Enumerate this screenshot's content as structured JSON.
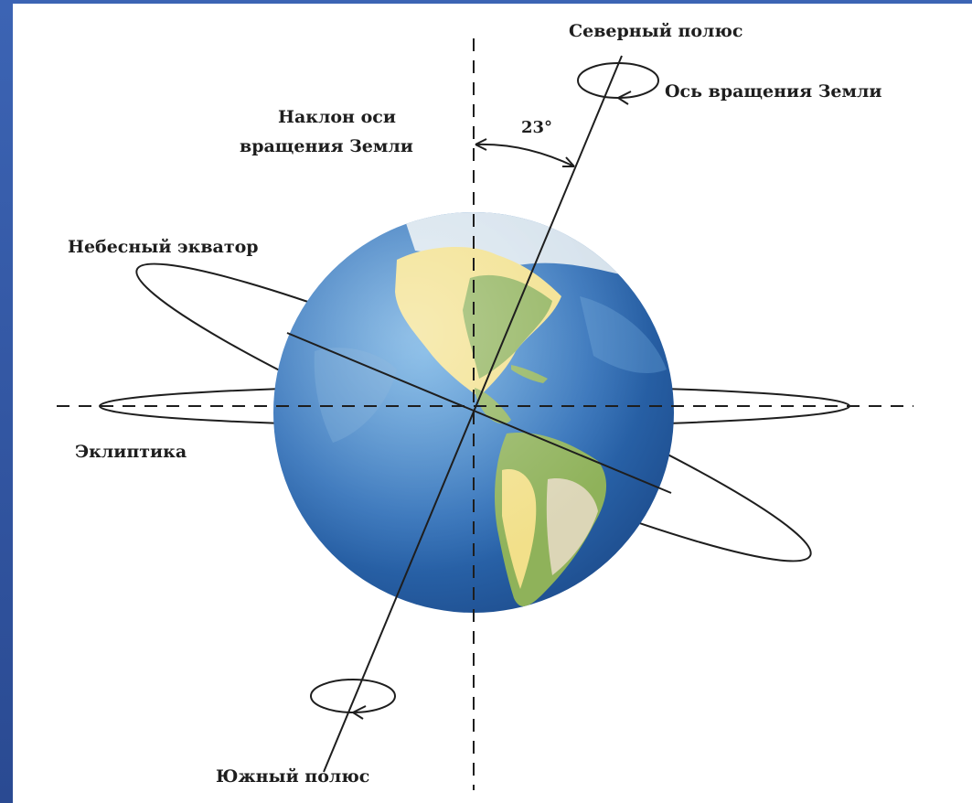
{
  "labels": {
    "north_pole": "Северный полюс",
    "rotation_axis": "Ось вращения Земли",
    "tilt_line1": "Наклон оси",
    "tilt_line2": "вращения Земли",
    "angle": "23°",
    "celestial_equator": "Небесный экватор",
    "ecliptic": "Эклиптика",
    "south_pole": "Южный полюс"
  },
  "colors": {
    "background": "#2f4f8f",
    "panel": "#ffffff",
    "ocean": "#2f6fb8",
    "land_green": "#8fb25a",
    "land_yellow": "#f2e08a",
    "ice": "#e8eef2",
    "line": "#1e1e1e"
  },
  "tilt_degrees": 23
}
